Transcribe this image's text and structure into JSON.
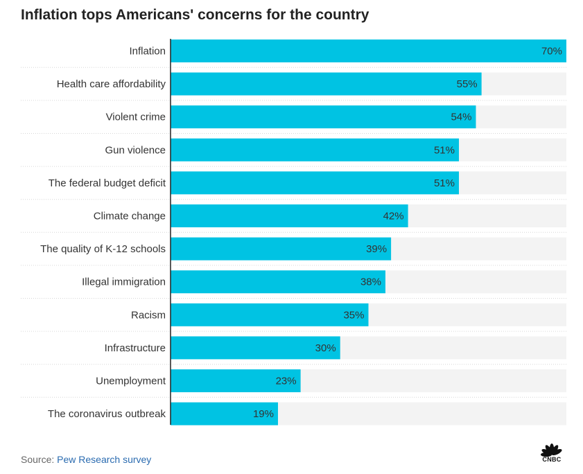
{
  "chart_data": {
    "type": "bar",
    "orientation": "horizontal",
    "title": "Inflation tops Americans' concerns for the country",
    "categories": [
      "Inflation",
      "Health care affordability",
      "Violent crime",
      "Gun violence",
      "The federal budget deficit",
      "Climate change",
      "The quality of K-12 schools",
      "Illegal immigration",
      "Racism",
      "Infrastructure",
      "Unemployment",
      "The coronavirus outbreak"
    ],
    "values": [
      70,
      55,
      54,
      51,
      51,
      42,
      39,
      38,
      35,
      30,
      23,
      19
    ],
    "data_labels": [
      "70%",
      "55%",
      "54%",
      "51%",
      "51%",
      "42%",
      "39%",
      "38%",
      "35%",
      "30%",
      "23%",
      "19%"
    ],
    "xlim": [
      0,
      70
    ],
    "bar_color": "#00c3e3",
    "track_color": "#f3f3f3",
    "grid": false
  },
  "source": {
    "prefix": "Source: ",
    "link_text": "Pew Research survey"
  },
  "logo": {
    "text": "CNBC",
    "icon": "cnbc-peacock-icon"
  }
}
